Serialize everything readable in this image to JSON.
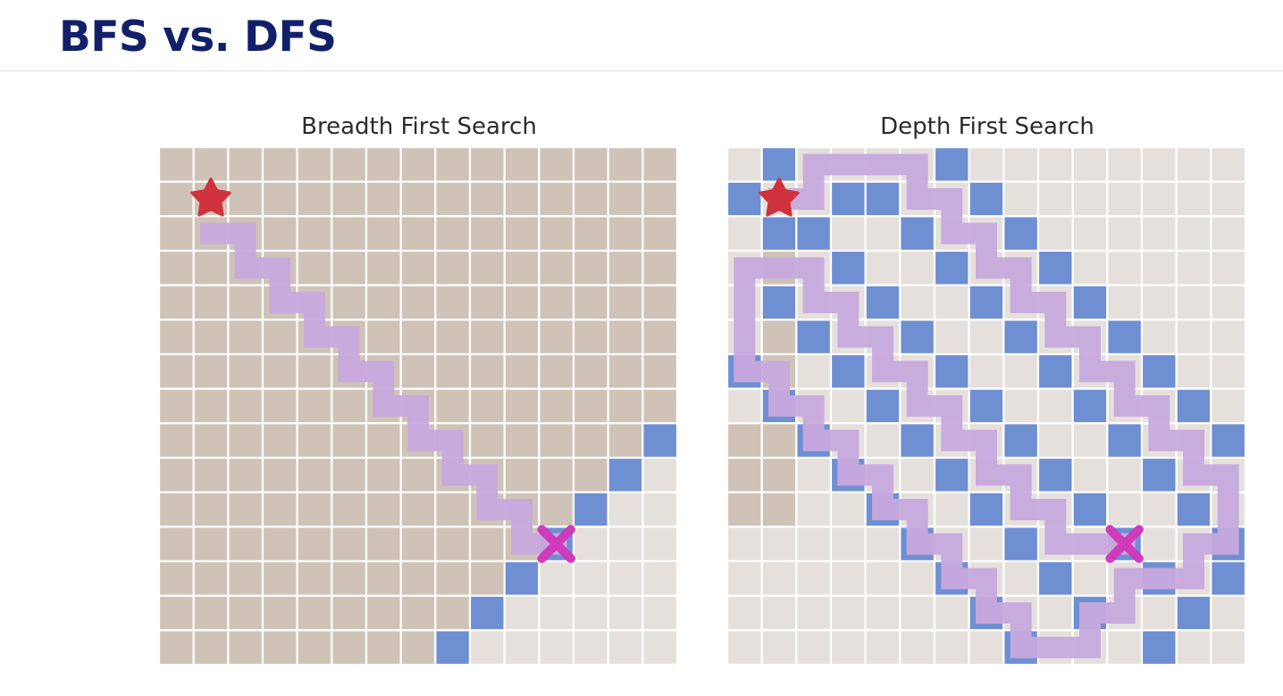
{
  "slide": {
    "title": "BFS vs. DFS"
  },
  "colors": {
    "title": "#12206a",
    "explored": "#cfc3b7",
    "unexplored": "#e6e0dd",
    "frontier": "#6f8fd3",
    "path": "#c7a9dd",
    "start": "#d0323d",
    "goal": "#cf3bbb",
    "grid_lines": "#ffffff"
  },
  "panels": [
    {
      "id": "bfs",
      "title": "Breadth First Search",
      "grid_size": 15,
      "explored_cells": "bfs-cone",
      "frontier_cells": [
        [
          14,
          8
        ],
        [
          13,
          9
        ],
        [
          12,
          10
        ],
        [
          11,
          11
        ],
        [
          10,
          12
        ],
        [
          9,
          13
        ],
        [
          8,
          14
        ]
      ],
      "path_cells": [
        [
          1,
          2
        ],
        [
          2,
          2
        ],
        [
          2,
          3
        ],
        [
          3,
          3
        ],
        [
          3,
          4
        ],
        [
          4,
          4
        ],
        [
          4,
          5
        ],
        [
          5,
          5
        ],
        [
          5,
          6
        ],
        [
          6,
          6
        ],
        [
          6,
          7
        ],
        [
          7,
          7
        ],
        [
          7,
          8
        ],
        [
          8,
          8
        ],
        [
          8,
          9
        ],
        [
          9,
          9
        ],
        [
          9,
          10
        ],
        [
          10,
          10
        ],
        [
          10,
          11
        ],
        [
          11,
          11
        ]
      ],
      "start": [
        1,
        1
      ],
      "goal": [
        11,
        11
      ],
      "start_icon": "star-icon",
      "goal_icon": "cross-icon"
    },
    {
      "id": "dfs",
      "title": "Depth First Search",
      "grid_size": 15,
      "explored_cells": [
        [
          1,
          2
        ],
        [
          1,
          3
        ],
        [
          1,
          4
        ],
        [
          1,
          5
        ],
        [
          1,
          6
        ],
        [
          1,
          7
        ],
        [
          1,
          8
        ],
        [
          1,
          9
        ],
        [
          1,
          10
        ],
        [
          0,
          8
        ],
        [
          0,
          9
        ],
        [
          0,
          10
        ]
      ],
      "frontier_cells": [
        [
          1,
          0
        ],
        [
          6,
          0
        ],
        [
          0,
          1
        ],
        [
          3,
          1
        ],
        [
          4,
          1
        ],
        [
          7,
          1
        ],
        [
          1,
          2
        ],
        [
          2,
          2
        ],
        [
          5,
          2
        ],
        [
          8,
          2
        ],
        [
          3,
          3
        ],
        [
          6,
          3
        ],
        [
          9,
          3
        ],
        [
          1,
          4
        ],
        [
          4,
          4
        ],
        [
          7,
          4
        ],
        [
          10,
          4
        ],
        [
          2,
          5
        ],
        [
          5,
          5
        ],
        [
          8,
          5
        ],
        [
          11,
          5
        ],
        [
          0,
          6
        ],
        [
          3,
          6
        ],
        [
          6,
          6
        ],
        [
          9,
          6
        ],
        [
          12,
          6
        ],
        [
          1,
          7
        ],
        [
          4,
          7
        ],
        [
          7,
          7
        ],
        [
          10,
          7
        ],
        [
          13,
          7
        ],
        [
          2,
          8
        ],
        [
          5,
          8
        ],
        [
          8,
          8
        ],
        [
          11,
          8
        ],
        [
          14,
          8
        ],
        [
          3,
          9
        ],
        [
          6,
          9
        ],
        [
          9,
          9
        ],
        [
          12,
          9
        ],
        [
          4,
          10
        ],
        [
          7,
          10
        ],
        [
          10,
          10
        ],
        [
          13,
          10
        ],
        [
          5,
          11
        ],
        [
          8,
          11
        ],
        [
          11,
          11
        ],
        [
          14,
          11
        ],
        [
          6,
          12
        ],
        [
          9,
          12
        ],
        [
          12,
          12
        ],
        [
          14,
          12
        ],
        [
          7,
          13
        ],
        [
          10,
          13
        ],
        [
          13,
          13
        ],
        [
          8,
          14
        ],
        [
          12,
          14
        ]
      ],
      "path_cells": [
        [
          1,
          1
        ],
        [
          2,
          1
        ],
        [
          2,
          0
        ],
        [
          3,
          0
        ],
        [
          4,
          0
        ],
        [
          5,
          0
        ],
        [
          5,
          1
        ],
        [
          6,
          1
        ],
        [
          6,
          2
        ],
        [
          7,
          2
        ],
        [
          7,
          3
        ],
        [
          8,
          3
        ],
        [
          8,
          4
        ],
        [
          9,
          4
        ],
        [
          9,
          5
        ],
        [
          10,
          5
        ],
        [
          10,
          6
        ],
        [
          11,
          6
        ],
        [
          11,
          7
        ],
        [
          12,
          7
        ],
        [
          12,
          8
        ],
        [
          13,
          8
        ],
        [
          13,
          9
        ],
        [
          14,
          9
        ],
        [
          14,
          10
        ],
        [
          14,
          11
        ],
        [
          13,
          11
        ],
        [
          13,
          12
        ],
        [
          12,
          12
        ],
        [
          11,
          12
        ],
        [
          11,
          13
        ],
        [
          10,
          13
        ],
        [
          10,
          14
        ],
        [
          9,
          14
        ],
        [
          8,
          14
        ],
        [
          8,
          13
        ],
        [
          7,
          13
        ],
        [
          7,
          12
        ],
        [
          6,
          12
        ],
        [
          6,
          11
        ],
        [
          5,
          11
        ],
        [
          5,
          10
        ],
        [
          4,
          10
        ],
        [
          4,
          9
        ],
        [
          3,
          9
        ],
        [
          3,
          8
        ],
        [
          2,
          8
        ],
        [
          2,
          7
        ],
        [
          1,
          7
        ],
        [
          1,
          6
        ],
        [
          0,
          6
        ],
        [
          0,
          5
        ],
        [
          0,
          4
        ],
        [
          0,
          3
        ],
        [
          1,
          3
        ],
        [
          2,
          3
        ],
        [
          2,
          4
        ],
        [
          3,
          4
        ],
        [
          3,
          5
        ],
        [
          4,
          5
        ],
        [
          4,
          6
        ],
        [
          5,
          6
        ],
        [
          5,
          7
        ],
        [
          6,
          7
        ],
        [
          6,
          8
        ],
        [
          7,
          8
        ],
        [
          7,
          9
        ],
        [
          8,
          9
        ],
        [
          8,
          10
        ],
        [
          9,
          10
        ],
        [
          9,
          11
        ],
        [
          10,
          11
        ],
        [
          11,
          11
        ]
      ],
      "start": [
        1,
        1
      ],
      "goal": [
        11,
        11
      ],
      "start_icon": "star-icon",
      "goal_icon": "cross-icon"
    }
  ]
}
